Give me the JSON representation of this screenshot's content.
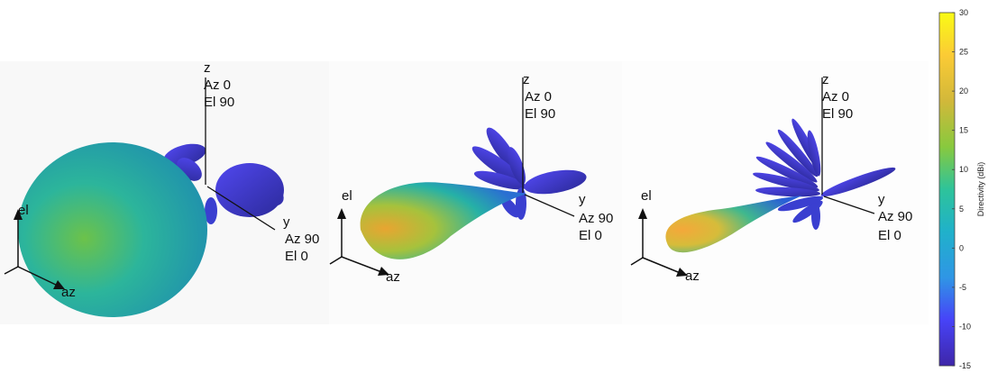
{
  "panels": [
    {
      "z_axis": {
        "name": "z",
        "az": "Az 0",
        "el": "El 90"
      },
      "y_axis": {
        "name": "y",
        "az": "Az 90",
        "el": "El 0"
      },
      "triad": {
        "up": "el",
        "side": "az"
      }
    },
    {
      "z_axis": {
        "name": "z",
        "az": "Az 0",
        "el": "El 90"
      },
      "y_axis": {
        "name": "y",
        "az": "Az 90",
        "el": "El 0"
      },
      "triad": {
        "up": "el",
        "side": "az"
      }
    },
    {
      "z_axis": {
        "name": "z",
        "az": "Az 0",
        "el": "El 90"
      },
      "y_axis": {
        "name": "y",
        "az": "Az 90",
        "el": "El 0"
      },
      "triad": {
        "up": "el",
        "side": "az"
      }
    }
  ],
  "colorbar": {
    "title": "Directivity (dBi)",
    "ticks": [
      "30",
      "25",
      "20",
      "15",
      "10",
      "5",
      "0",
      "-5",
      "-10",
      "-15"
    ],
    "min": -15,
    "max": 30,
    "colormap": [
      "#3e26a8",
      "#4743f8",
      "#2f96e5",
      "#20b1ca",
      "#2ec39a",
      "#88c93e",
      "#d2b83a",
      "#fbcb35",
      "#f9fb15"
    ]
  }
}
